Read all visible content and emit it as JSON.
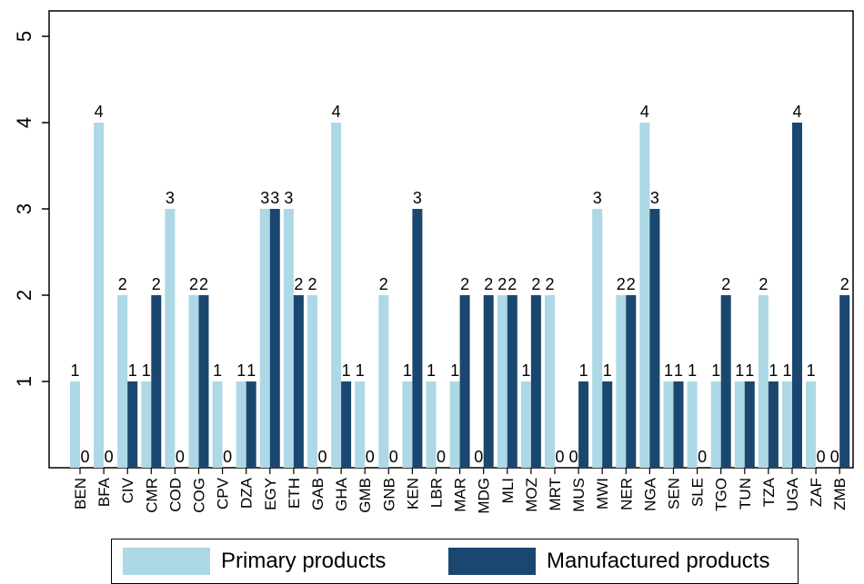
{
  "chart_data": {
    "type": "bar",
    "title": "",
    "xlabel": "",
    "ylabel": "",
    "ylim": [
      0,
      5
    ],
    "yticks": [
      1,
      2,
      3,
      4,
      5
    ],
    "grid": false,
    "legend_position": "bottom",
    "categories": [
      "BEN",
      "BFA",
      "CIV",
      "CMR",
      "COD",
      "COG",
      "CPV",
      "DZA",
      "EGY",
      "ETH",
      "GAB",
      "GHA",
      "GMB",
      "GNB",
      "KEN",
      "LBR",
      "MAR",
      "MDG",
      "MLI",
      "MOZ",
      "MRT",
      "MUS",
      "MWI",
      "NER",
      "NGA",
      "SEN",
      "SLE",
      "TGO",
      "TUN",
      "TZA",
      "UGA",
      "ZAF",
      "ZMB"
    ],
    "series": [
      {
        "name": "Primary products",
        "color": "#add8e6",
        "values": [
          1,
          4,
          2,
          1,
          3,
          2,
          1,
          1,
          3,
          3,
          2,
          4,
          1,
          2,
          1,
          1,
          1,
          0,
          2,
          1,
          2,
          0,
          3,
          2,
          4,
          1,
          1,
          1,
          1,
          2,
          1,
          1,
          0
        ]
      },
      {
        "name": "Manufactured products",
        "color": "#1a476f",
        "values": [
          0,
          0,
          1,
          2,
          0,
          2,
          0,
          1,
          3,
          2,
          0,
          1,
          0,
          0,
          3,
          0,
          2,
          2,
          2,
          2,
          0,
          1,
          1,
          2,
          3,
          1,
          0,
          2,
          1,
          1,
          4,
          0,
          2
        ]
      }
    ]
  }
}
